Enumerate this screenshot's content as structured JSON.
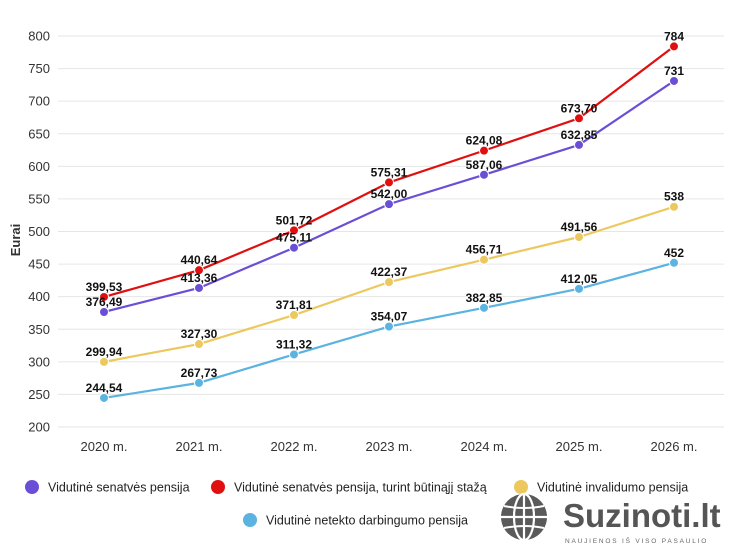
{
  "chart_data": {
    "type": "line",
    "categories": [
      "2020 m.",
      "2021 m.",
      "2022 m.",
      "2023 m.",
      "2024 m.",
      "2025 m.",
      "2026 m."
    ],
    "ylabel": "Eurai",
    "xlabel": "",
    "title": "",
    "ylim": [
      200,
      800
    ],
    "yticks": [
      "200",
      "250",
      "300",
      "350",
      "400",
      "450",
      "500",
      "550",
      "600",
      "650",
      "700",
      "750",
      "800"
    ],
    "grid": true,
    "legend_position": "bottom",
    "series": [
      {
        "name": "Vidutinė senatvės pensija",
        "color": "#6a4fd6",
        "values": [
          376.49,
          413.36,
          475.11,
          542.0,
          587.06,
          632.85,
          731
        ],
        "labels": [
          "376,49",
          "413,36",
          "475,11",
          "542,00",
          "587,06",
          "632,85",
          "731"
        ]
      },
      {
        "name": "Vidutinė senatvės pensija, turint būtinąjį stažą",
        "color": "#e01010",
        "values": [
          399.53,
          440.64,
          501.72,
          575.31,
          624.08,
          673.7,
          784
        ],
        "labels": [
          "399,53",
          "440,64",
          "501,72",
          "575,31",
          "624,08",
          "673,70",
          "784"
        ]
      },
      {
        "name": "Vidutinė invalidumo pensija",
        "color": "#ecc85e",
        "values": [
          299.94,
          327.3,
          371.81,
          422.37,
          456.71,
          491.56,
          538
        ],
        "labels": [
          "299,94",
          "327,30",
          "371,81",
          "422,37",
          "456,71",
          "491,56",
          "538"
        ]
      },
      {
        "name": "Vidutinė netekto darbingumo pensija",
        "color": "#5ab3e0",
        "values": [
          244.54,
          267.73,
          311.32,
          354.07,
          382.85,
          412.05,
          452
        ],
        "labels": [
          "244,54",
          "267,73",
          "311,32",
          "354,07",
          "382,85",
          "412,05",
          "452"
        ]
      }
    ]
  },
  "watermark": {
    "brand": "Suzinoti.lt",
    "tagline": "NAUJIENOS IŠ VISO PASAULIO",
    "icon": "globe-icon"
  }
}
